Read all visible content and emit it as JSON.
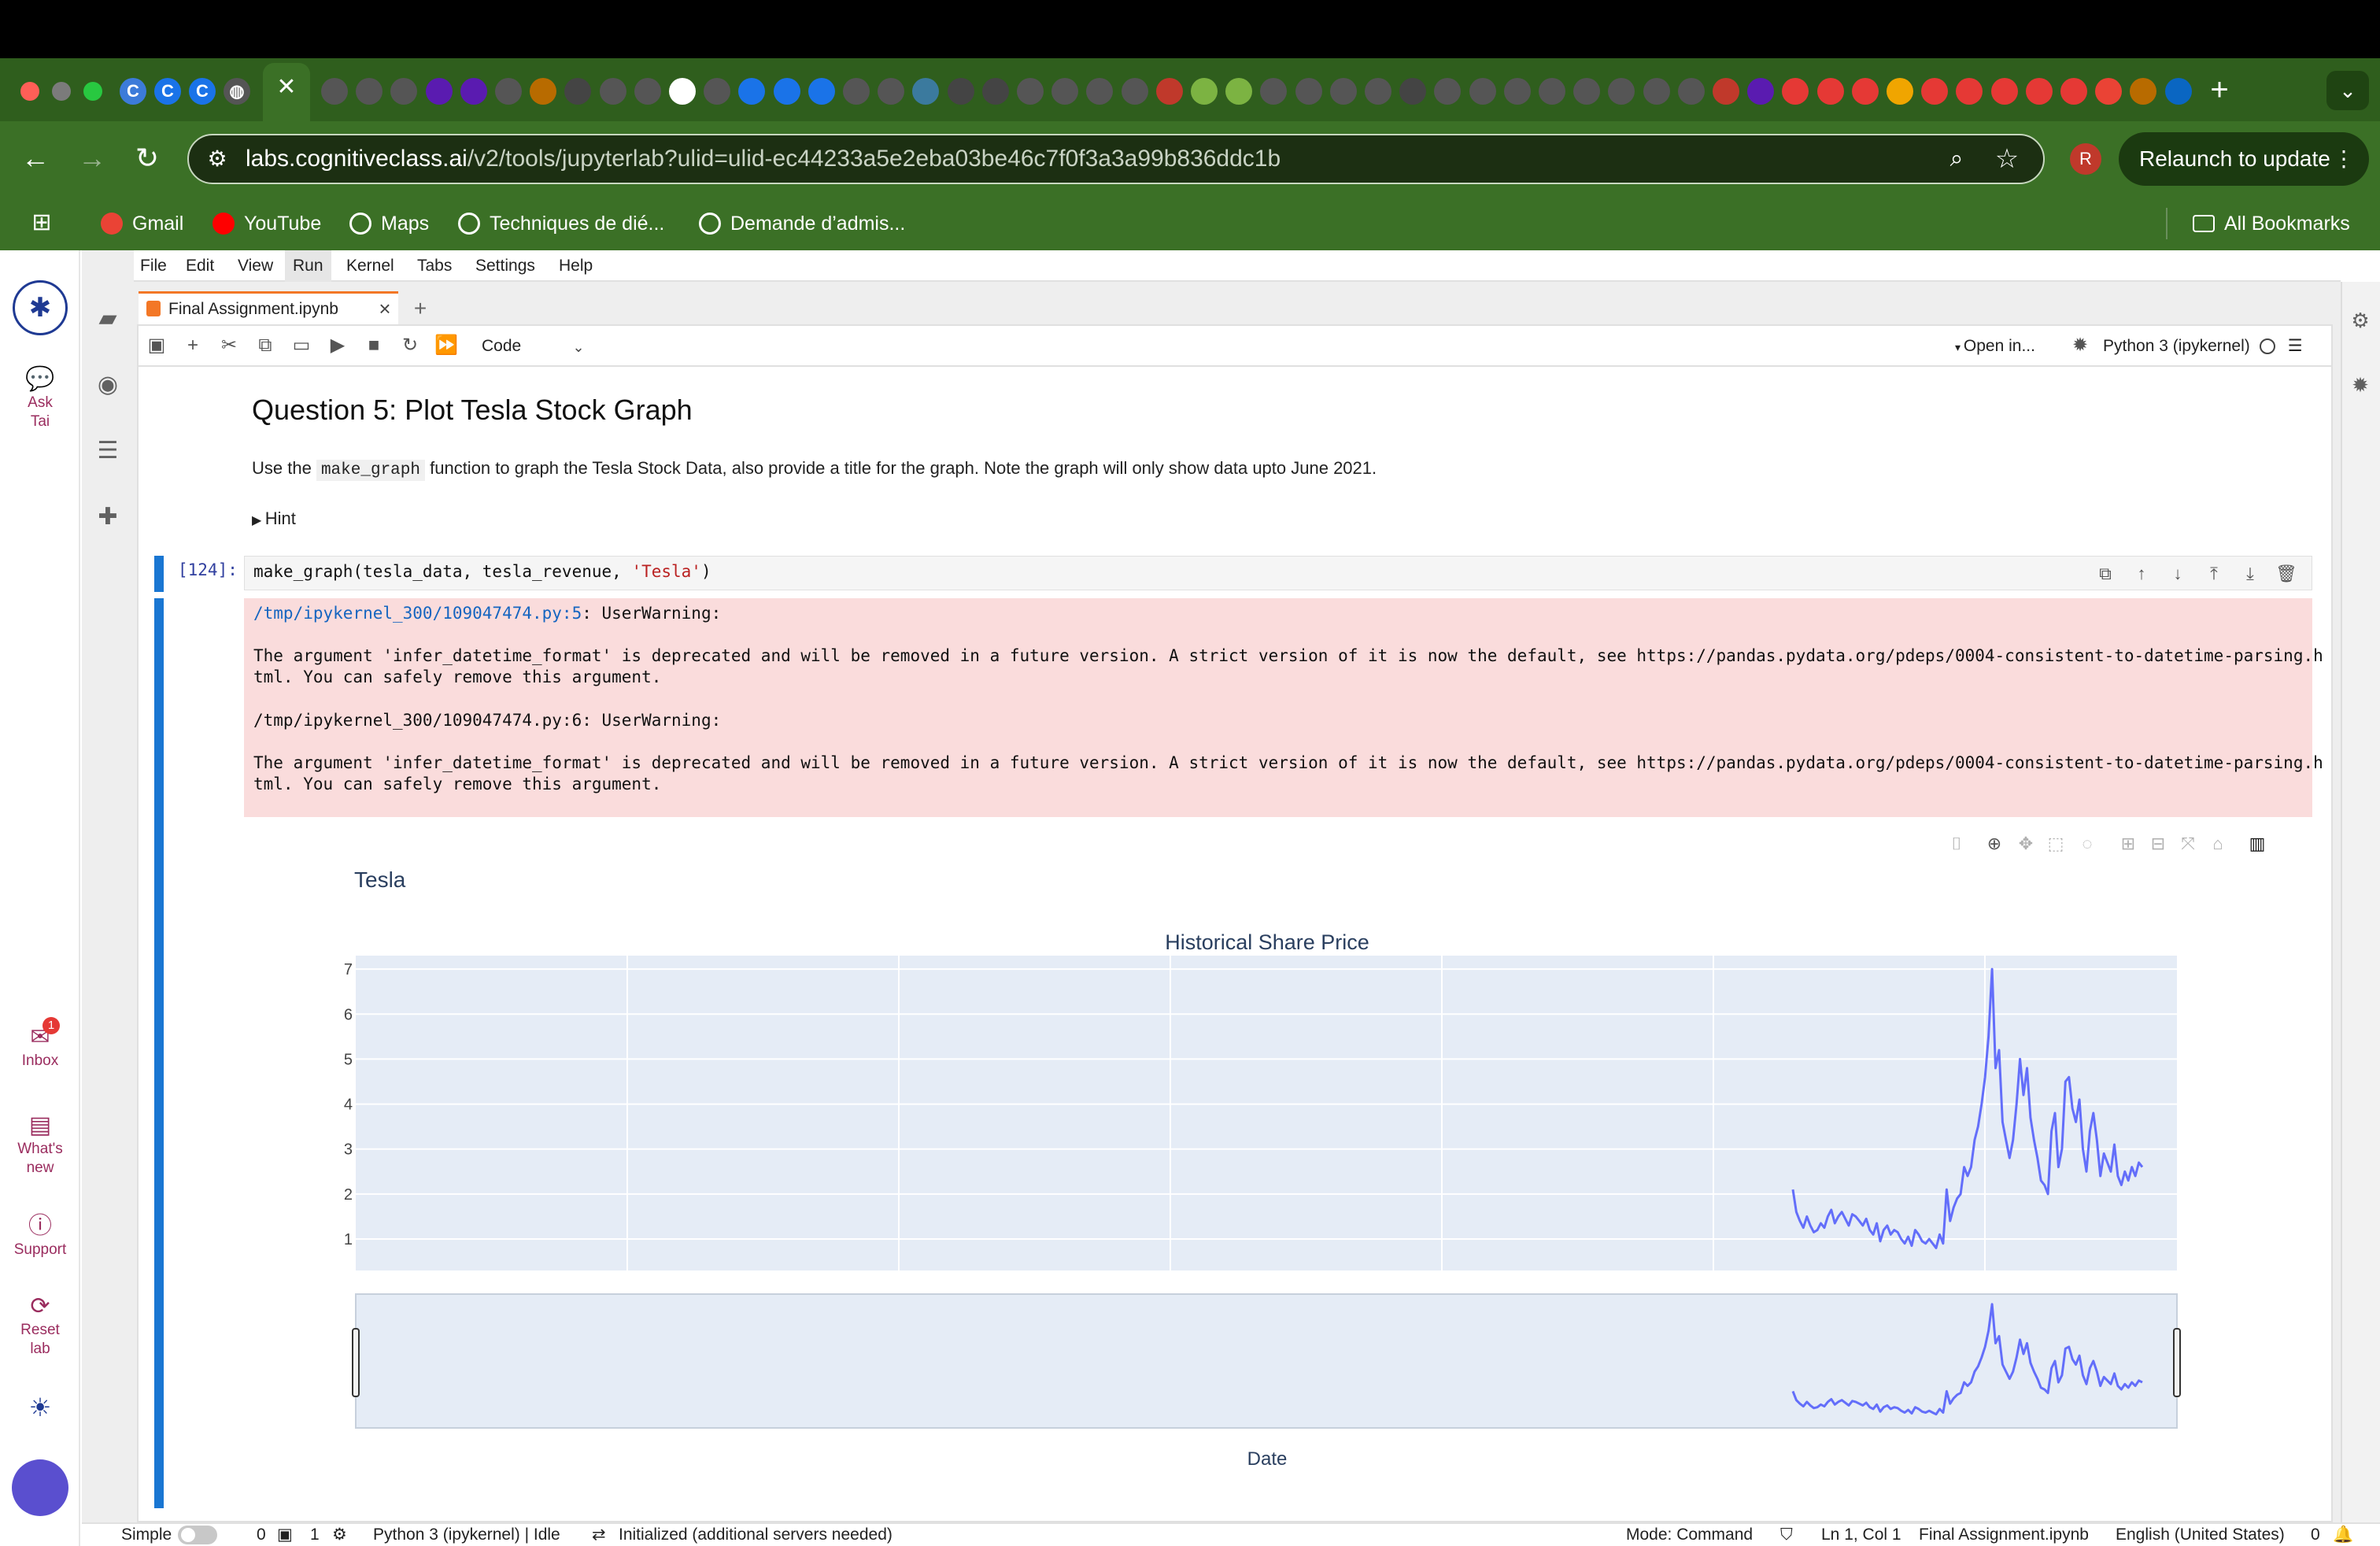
{
  "browser": {
    "url_host": "labs.cognitiveclass.ai",
    "url_path": "/v2/tools/jupyterlab?ulid=ulid-ec44233a5e2eba03be46c7f0f3a3a99b836ddc1b",
    "relaunch_label": "Relaunch to update",
    "profile_initial": "R",
    "new_tab_symbol": "+",
    "bookmarks": [
      {
        "label": "Gmail",
        "icon": "gmail-icon",
        "color": "#ea4335"
      },
      {
        "label": "YouTube",
        "icon": "youtube-icon",
        "color": "#ff0000"
      },
      {
        "label": "Maps",
        "icon": "globe-icon",
        "color": "#ffffff"
      },
      {
        "label": "Techniques de dié...",
        "icon": "globe-icon",
        "color": "#ffffff"
      },
      {
        "label": "Demande d’admis...",
        "icon": "globe-icon",
        "color": "#ffffff"
      }
    ],
    "all_bookmarks_label": "All Bookmarks"
  },
  "left_rail": {
    "ask_label": "Ask Tai",
    "inbox_label": "Inbox",
    "inbox_badge": "1",
    "whats_new_label": "What's new",
    "support_label": "Support",
    "reset_label": "Reset lab"
  },
  "menubar": {
    "items": [
      "File",
      "Edit",
      "View",
      "Run",
      "Kernel",
      "Tabs",
      "Settings",
      "Help"
    ]
  },
  "notebook": {
    "tab_title": "Final Assignment.ipynb",
    "cell_type": "Code",
    "open_in": "Open in...",
    "kernel": "Python 3 (ipykernel)",
    "heading": "Question 5: Plot Tesla Stock Graph",
    "desc_prefix": "Use the",
    "desc_code": "make_graph",
    "desc_suffix": "function to graph the Tesla Stock Data, also provide a title for the graph. Note the graph will only show data upto June 2021.",
    "hint": "Hint",
    "prompt": "[124]:",
    "code_prefix": "make_graph(tesla_data, tesla_revenue, ",
    "code_string": "'Tesla'",
    "code_suffix": ")",
    "warn1_path": "/tmp/ipykernel_300/109047474.py:5",
    "warn2_path": "/tmp/ipykernel_300/109047474.py:6",
    "warn_type": ": UserWarning:",
    "warn_body1": "The argument 'infer_datetime_format' is deprecated and will be removed in a future version. A strict version of it is now the default, see https://pandas.pydata.org/pdeps/0004-consistent-to-datetime-parsing.h",
    "warn_body2": "tml. You can safely remove this argument."
  },
  "chart_data": {
    "type": "line",
    "title": "Tesla",
    "subplot_title": "Historical Share Price",
    "xlabel": "Date",
    "ylabel": "",
    "y_ticks": [
      1,
      2,
      3,
      4,
      5,
      6,
      7
    ],
    "ylim": [
      0.3,
      7.3
    ],
    "grid": true,
    "rangeslider": true,
    "series": [
      {
        "color": "#636efa",
        "x": [
          0.0,
          0.01,
          0.02,
          0.03,
          0.04,
          0.05,
          0.06,
          0.07,
          0.08,
          0.09,
          0.1,
          0.11,
          0.12,
          0.13,
          0.14,
          0.15,
          0.16,
          0.17,
          0.18,
          0.19,
          0.2,
          0.21,
          0.22,
          0.23,
          0.24,
          0.25,
          0.26,
          0.27,
          0.28,
          0.29,
          0.3,
          0.31,
          0.32,
          0.33,
          0.34,
          0.35,
          0.36,
          0.37,
          0.38,
          0.39,
          0.4,
          0.41,
          0.42,
          0.43,
          0.44,
          0.45,
          0.46,
          0.47,
          0.48,
          0.49,
          0.5,
          0.51,
          0.52,
          0.53,
          0.54,
          0.55,
          0.56,
          0.57,
          0.58,
          0.59,
          0.6,
          0.61,
          0.62,
          0.63,
          0.64,
          0.65,
          0.66,
          0.67,
          0.68,
          0.69,
          0.7,
          0.71,
          0.72,
          0.73,
          0.74,
          0.75,
          0.76,
          0.77,
          0.78,
          0.79,
          0.8,
          0.81,
          0.82,
          0.83,
          0.84,
          0.85,
          0.86,
          0.87,
          0.88,
          0.89,
          0.9,
          0.91,
          0.92,
          0.93,
          0.94,
          0.95,
          0.96,
          0.97,
          0.98,
          0.99,
          1.0
        ],
        "y": [
          2.1,
          1.6,
          1.4,
          1.25,
          1.5,
          1.3,
          1.15,
          1.2,
          1.35,
          1.25,
          1.5,
          1.65,
          1.35,
          1.5,
          1.6,
          1.45,
          1.3,
          1.55,
          1.5,
          1.4,
          1.3,
          1.45,
          1.2,
          1.1,
          1.35,
          0.95,
          1.2,
          1.3,
          1.1,
          1.2,
          1.15,
          1.0,
          0.9,
          1.05,
          0.85,
          1.2,
          1.1,
          0.95,
          0.9,
          1.0,
          0.9,
          0.8,
          1.1,
          0.9,
          2.1,
          1.4,
          1.7,
          1.9,
          2.0,
          2.6,
          2.4,
          2.6,
          3.2,
          3.5,
          4.0,
          4.6,
          5.5,
          7.0,
          4.8,
          5.2,
          3.6,
          3.2,
          2.8,
          3.2,
          4.0,
          5.0,
          4.2,
          4.8,
          3.7,
          3.2,
          2.8,
          2.3,
          2.2,
          2.0,
          3.4,
          3.8,
          2.6,
          3.0,
          4.5,
          4.6,
          3.9,
          3.6,
          4.1,
          3.0,
          2.5,
          3.4,
          3.8,
          3.2,
          2.4,
          2.9,
          2.7,
          2.5,
          3.1,
          2.4,
          2.2,
          2.5,
          2.3,
          2.6,
          2.4,
          2.7,
          2.6
        ],
        "note_x_range": "only the last part of the date axis holds data"
      }
    ]
  }
}
